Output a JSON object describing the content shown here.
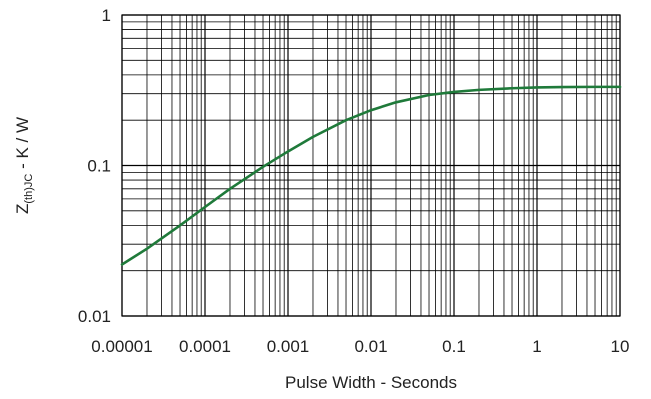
{
  "chart_data": {
    "type": "line",
    "xscale": "log",
    "yscale": "log",
    "xlim": [
      1e-05,
      10
    ],
    "ylim": [
      0.01,
      1
    ],
    "xticks": [
      "0.00001",
      "0.0001",
      "0.001",
      "0.01",
      "0.1",
      "1",
      "10"
    ],
    "yticks": [
      "0.01",
      "0.1",
      "1"
    ],
    "xlabel": "Pulse Width - Seconds",
    "ylabel": {
      "main": "Z",
      "sub": "(th)JC",
      "rest": " - K / W"
    },
    "grid": "major and minor",
    "series": [
      {
        "color": "#1f7a3a",
        "x": [
          1e-05,
          2e-05,
          5e-05,
          0.0001,
          0.0002,
          0.0005,
          0.001,
          0.002,
          0.005,
          0.01,
          0.02,
          0.05,
          0.1,
          0.2,
          0.5,
          1,
          2,
          5,
          10
        ],
        "y": [
          0.022,
          0.028,
          0.04,
          0.053,
          0.07,
          0.098,
          0.124,
          0.155,
          0.2,
          0.233,
          0.263,
          0.294,
          0.308,
          0.318,
          0.326,
          0.33,
          0.332,
          0.333,
          0.333
        ]
      }
    ]
  }
}
